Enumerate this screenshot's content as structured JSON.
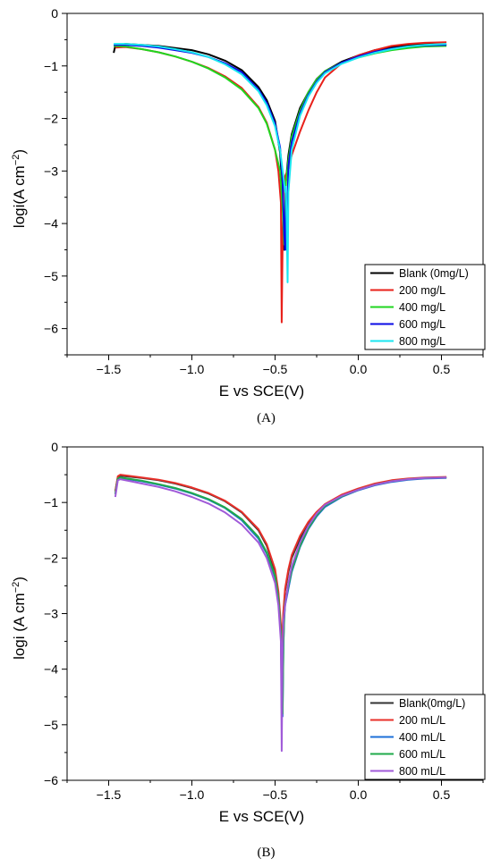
{
  "chart_data": [
    {
      "type": "line",
      "panel_label": "(A)",
      "xlabel": "E vs SCE(V)",
      "ylabel_base": "logi(A cm",
      "ylabel_sup": "−2",
      "ylabel_end": ")",
      "xlim": [
        -1.75,
        0.75
      ],
      "ylim": [
        -6.5,
        0
      ],
      "xticks": [
        -1.5,
        -1.0,
        -0.5,
        0.0,
        0.5
      ],
      "xtick_labels": [
        "−1.5",
        "−1.0",
        "−0.5",
        "0.0",
        "0.5"
      ],
      "yticks": [
        0,
        -1,
        -2,
        -3,
        -4,
        -5,
        -6
      ],
      "ytick_labels": [
        "0",
        "−1",
        "−2",
        "−3",
        "−4",
        "−5",
        "−6"
      ],
      "legend_position": "bottom-right",
      "series": [
        {
          "name": "Blank (0mg/L)",
          "color": "#000000",
          "x": [
            -1.47,
            -1.46,
            -1.4,
            -1.3,
            -1.2,
            -1.1,
            -1.0,
            -0.9,
            -0.8,
            -0.7,
            -0.6,
            -0.55,
            -0.5,
            -0.47,
            -0.455,
            -0.445,
            -0.44,
            -0.435,
            -0.42,
            -0.4,
            -0.35,
            -0.3,
            -0.25,
            -0.2,
            -0.1,
            0.0,
            0.1,
            0.2,
            0.3,
            0.4,
            0.53
          ],
          "y": [
            -0.75,
            -0.62,
            -0.58,
            -0.6,
            -0.62,
            -0.66,
            -0.7,
            -0.78,
            -0.9,
            -1.08,
            -1.4,
            -1.65,
            -2.05,
            -2.65,
            -3.4,
            -4.5,
            -4.2,
            -3.2,
            -2.7,
            -2.3,
            -1.8,
            -1.5,
            -1.25,
            -1.1,
            -0.92,
            -0.8,
            -0.7,
            -0.64,
            -0.6,
            -0.58,
            -0.6
          ]
        },
        {
          "name": "200 mg/L",
          "color": "#e8201a",
          "x": [
            -1.46,
            -1.4,
            -1.3,
            -1.2,
            -1.1,
            -1.0,
            -0.9,
            -0.8,
            -0.7,
            -0.6,
            -0.55,
            -0.5,
            -0.48,
            -0.465,
            -0.46,
            -0.455,
            -0.45,
            -0.44,
            -0.42,
            -0.4,
            -0.35,
            -0.3,
            -0.25,
            -0.2,
            -0.1,
            0.0,
            0.1,
            0.2,
            0.3,
            0.4,
            0.53
          ],
          "y": [
            -0.65,
            -0.64,
            -0.68,
            -0.74,
            -0.82,
            -0.92,
            -1.04,
            -1.2,
            -1.42,
            -1.78,
            -2.08,
            -2.6,
            -3.0,
            -3.6,
            -5.88,
            -4.4,
            -3.4,
            -3.1,
            -2.95,
            -2.7,
            -2.25,
            -1.85,
            -1.5,
            -1.22,
            -0.95,
            -0.8,
            -0.7,
            -0.62,
            -0.58,
            -0.56,
            -0.55
          ]
        },
        {
          "name": "400 mg/L",
          "color": "#1fd61f",
          "x": [
            -1.47,
            -1.4,
            -1.3,
            -1.2,
            -1.1,
            -1.0,
            -0.9,
            -0.8,
            -0.7,
            -0.6,
            -0.55,
            -0.5,
            -0.47,
            -0.455,
            -0.445,
            -0.44,
            -0.435,
            -0.42,
            -0.4,
            -0.35,
            -0.3,
            -0.25,
            -0.2,
            -0.1,
            0.0,
            0.1,
            0.2,
            0.3,
            0.4,
            0.53
          ],
          "y": [
            -0.62,
            -0.63,
            -0.68,
            -0.74,
            -0.82,
            -0.92,
            -1.05,
            -1.22,
            -1.45,
            -1.8,
            -2.1,
            -2.6,
            -3.0,
            -3.7,
            -4.4,
            -3.8,
            -3.2,
            -2.8,
            -2.35,
            -1.85,
            -1.5,
            -1.26,
            -1.1,
            -0.94,
            -0.84,
            -0.76,
            -0.7,
            -0.66,
            -0.63,
            -0.62
          ]
        },
        {
          "name": "600 mg/L",
          "color": "#0a0ae6",
          "x": [
            -1.47,
            -1.4,
            -1.3,
            -1.2,
            -1.1,
            -1.0,
            -0.9,
            -0.8,
            -0.7,
            -0.6,
            -0.55,
            -0.5,
            -0.47,
            -0.455,
            -0.445,
            -0.44,
            -0.435,
            -0.43,
            -0.42,
            -0.4,
            -0.35,
            -0.3,
            -0.25,
            -0.2,
            -0.1,
            0.0,
            0.1,
            0.2,
            0.3,
            0.4,
            0.53
          ],
          "y": [
            -0.6,
            -0.6,
            -0.62,
            -0.65,
            -0.7,
            -0.75,
            -0.83,
            -0.95,
            -1.12,
            -1.45,
            -1.7,
            -2.1,
            -2.55,
            -3.2,
            -4.2,
            -4.5,
            -3.4,
            -4.5,
            -2.9,
            -2.45,
            -1.9,
            -1.55,
            -1.3,
            -1.12,
            -0.94,
            -0.82,
            -0.73,
            -0.67,
            -0.63,
            -0.61,
            -0.6
          ]
        },
        {
          "name": "800 mg/L",
          "color": "#19e6f0",
          "x": [
            -1.47,
            -1.4,
            -1.3,
            -1.2,
            -1.1,
            -1.0,
            -0.9,
            -0.8,
            -0.7,
            -0.6,
            -0.55,
            -0.5,
            -0.47,
            -0.45,
            -0.44,
            -0.435,
            -0.43,
            -0.425,
            -0.42,
            -0.4,
            -0.35,
            -0.3,
            -0.25,
            -0.2,
            -0.1,
            0.0,
            0.1,
            0.2,
            0.3,
            0.4,
            0.53
          ],
          "y": [
            -0.58,
            -0.58,
            -0.6,
            -0.63,
            -0.68,
            -0.74,
            -0.83,
            -0.97,
            -1.16,
            -1.48,
            -1.75,
            -2.15,
            -2.6,
            -3.1,
            -3.4,
            -3.3,
            -4.0,
            -5.12,
            -3.4,
            -2.6,
            -1.95,
            -1.58,
            -1.32,
            -1.14,
            -0.96,
            -0.84,
            -0.75,
            -0.68,
            -0.63,
            -0.6,
            -0.58
          ]
        }
      ]
    },
    {
      "type": "line",
      "panel_label": "(B)",
      "xlabel": "E vs SCE(V)",
      "ylabel_base": "logi (A cm",
      "ylabel_sup": "−2",
      "ylabel_end": ")",
      "xlim": [
        -1.75,
        0.75
      ],
      "ylim": [
        -6,
        0
      ],
      "xticks": [
        -1.5,
        -1.0,
        -0.5,
        0.0,
        0.5
      ],
      "xtick_labels": [
        "−1.5",
        "−1.0",
        "−0.5",
        "0.0",
        "0.5"
      ],
      "yticks": [
        0,
        -1,
        -2,
        -3,
        -4,
        -5,
        -6
      ],
      "ytick_labels": [
        "0",
        "−1",
        "−2",
        "−3",
        "−4",
        "−5",
        "−6"
      ],
      "legend_position": "bottom-right",
      "series": [
        {
          "name": "Blank(0mg/L)",
          "color": "#333333",
          "x": [
            -1.46,
            -1.445,
            -1.43,
            -1.3,
            -1.2,
            -1.1,
            -1.0,
            -0.9,
            -0.8,
            -0.7,
            -0.6,
            -0.55,
            -0.5,
            -0.48,
            -0.465,
            -0.46,
            -0.455,
            -0.45,
            -0.44,
            -0.42,
            -0.4,
            -0.35,
            -0.3,
            -0.25,
            -0.2,
            -0.1,
            0.0,
            0.1,
            0.2,
            0.3,
            0.4,
            0.53
          ],
          "y": [
            -0.8,
            -0.55,
            -0.52,
            -0.56,
            -0.6,
            -0.66,
            -0.74,
            -0.84,
            -0.98,
            -1.18,
            -1.5,
            -1.78,
            -2.25,
            -2.65,
            -3.3,
            -4.7,
            -3.4,
            -3.0,
            -2.6,
            -2.25,
            -2.0,
            -1.65,
            -1.4,
            -1.2,
            -1.05,
            -0.88,
            -0.76,
            -0.67,
            -0.61,
            -0.58,
            -0.56,
            -0.55
          ]
        },
        {
          "name": "200 mL/L",
          "color": "#e8302a",
          "x": [
            -1.46,
            -1.445,
            -1.43,
            -1.3,
            -1.2,
            -1.1,
            -1.0,
            -0.9,
            -0.8,
            -0.7,
            -0.6,
            -0.55,
            -0.5,
            -0.48,
            -0.465,
            -0.46,
            -0.455,
            -0.45,
            -0.44,
            -0.42,
            -0.4,
            -0.35,
            -0.3,
            -0.25,
            -0.2,
            -0.1,
            0.0,
            0.1,
            0.2,
            0.3,
            0.4,
            0.53
          ],
          "y": [
            -0.8,
            -0.53,
            -0.5,
            -0.55,
            -0.59,
            -0.65,
            -0.73,
            -0.83,
            -0.97,
            -1.17,
            -1.48,
            -1.75,
            -2.2,
            -2.6,
            -3.2,
            -4.4,
            -3.3,
            -2.95,
            -2.55,
            -2.2,
            -1.95,
            -1.6,
            -1.35,
            -1.17,
            -1.03,
            -0.86,
            -0.75,
            -0.66,
            -0.6,
            -0.57,
            -0.55,
            -0.54
          ]
        },
        {
          "name": "400 mL/L",
          "color": "#1c6fd8",
          "x": [
            -1.46,
            -1.445,
            -1.43,
            -1.3,
            -1.2,
            -1.1,
            -1.0,
            -0.9,
            -0.8,
            -0.7,
            -0.6,
            -0.55,
            -0.5,
            -0.48,
            -0.465,
            -0.455,
            -0.45,
            -0.445,
            -0.44,
            -0.42,
            -0.4,
            -0.35,
            -0.3,
            -0.25,
            -0.2,
            -0.1,
            0.0,
            0.1,
            0.2,
            0.3,
            0.4,
            0.53
          ],
          "y": [
            -0.85,
            -0.58,
            -0.56,
            -0.62,
            -0.68,
            -0.75,
            -0.84,
            -0.95,
            -1.1,
            -1.32,
            -1.65,
            -1.92,
            -2.35,
            -2.75,
            -3.4,
            -4.85,
            -3.6,
            -3.1,
            -2.85,
            -2.55,
            -2.25,
            -1.8,
            -1.48,
            -1.25,
            -1.08,
            -0.9,
            -0.78,
            -0.69,
            -0.63,
            -0.59,
            -0.57,
            -0.56
          ]
        },
        {
          "name": "600 mL/L",
          "color": "#1faa4a",
          "x": [
            -1.46,
            -1.445,
            -1.43,
            -1.3,
            -1.2,
            -1.1,
            -1.0,
            -0.9,
            -0.8,
            -0.7,
            -0.6,
            -0.55,
            -0.5,
            -0.48,
            -0.465,
            -0.455,
            -0.45,
            -0.445,
            -0.44,
            -0.42,
            -0.4,
            -0.35,
            -0.3,
            -0.25,
            -0.2,
            -0.1,
            0.0,
            0.1,
            0.2,
            0.3,
            0.4,
            0.53
          ],
          "y": [
            -0.85,
            -0.57,
            -0.55,
            -0.61,
            -0.67,
            -0.74,
            -0.83,
            -0.94,
            -1.09,
            -1.3,
            -1.62,
            -1.9,
            -2.32,
            -2.72,
            -3.35,
            -4.8,
            -3.55,
            -3.05,
            -2.8,
            -2.5,
            -2.22,
            -1.78,
            -1.46,
            -1.23,
            -1.06,
            -0.89,
            -0.77,
            -0.68,
            -0.62,
            -0.58,
            -0.56,
            -0.55
          ]
        },
        {
          "name": "800 mL/L",
          "color": "#a05ad8",
          "x": [
            -1.46,
            -1.445,
            -1.43,
            -1.3,
            -1.2,
            -1.1,
            -1.0,
            -0.9,
            -0.8,
            -0.7,
            -0.6,
            -0.55,
            -0.5,
            -0.48,
            -0.465,
            -0.46,
            -0.455,
            -0.45,
            -0.44,
            -0.42,
            -0.4,
            -0.35,
            -0.3,
            -0.25,
            -0.2,
            -0.1,
            0.0,
            0.1,
            0.2,
            0.3,
            0.4,
            0.53
          ],
          "y": [
            -0.9,
            -0.6,
            -0.58,
            -0.66,
            -0.72,
            -0.8,
            -0.9,
            -1.02,
            -1.18,
            -1.4,
            -1.72,
            -2.0,
            -2.45,
            -2.85,
            -3.5,
            -5.47,
            -3.7,
            -3.15,
            -2.85,
            -2.45,
            -2.15,
            -1.72,
            -1.42,
            -1.2,
            -1.04,
            -0.88,
            -0.77,
            -0.68,
            -0.62,
            -0.58,
            -0.56,
            -0.55
          ]
        }
      ]
    }
  ]
}
